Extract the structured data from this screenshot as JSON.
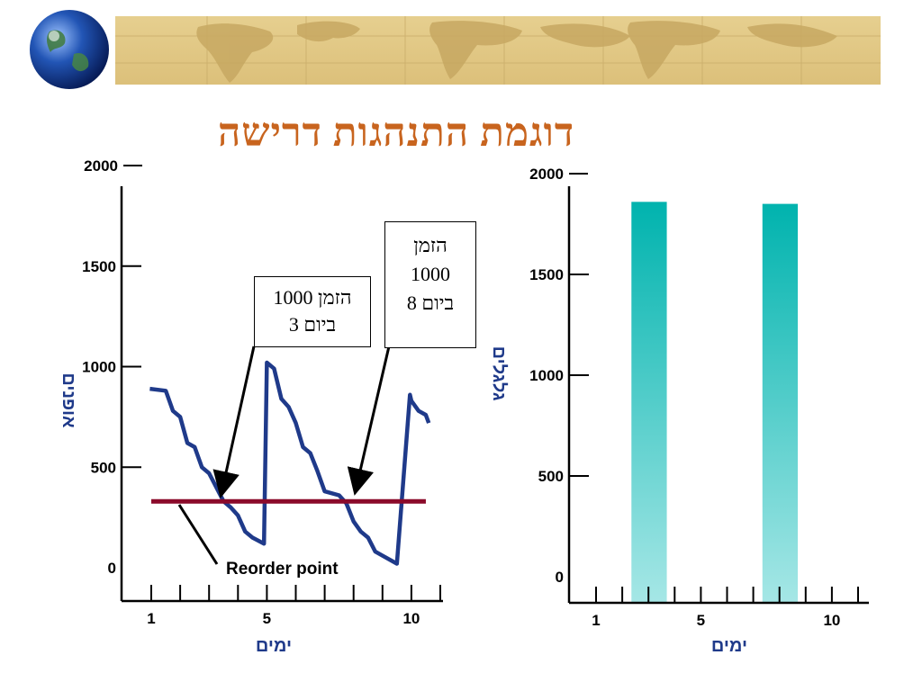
{
  "slide": {
    "title": "דוגמת התנהגות דרישה"
  },
  "colors": {
    "title": "#c8641e",
    "inventory_line": "#1f3a8a",
    "reorder_line": "#8b0a2a",
    "bar_top": "#00b3ae",
    "bar_bottom": "#a6e7e6",
    "axis_title": "#1f3a8a"
  },
  "banner": {
    "icon": "globe-icon",
    "background": "world-map-parchment"
  },
  "callouts": {
    "day3": {
      "line1": "הזמן 1000",
      "line2": "ביום 3"
    },
    "day8": {
      "line1": "הזמן",
      "line2": "1000",
      "line3": "ביום 8"
    },
    "reorder": "Reorder point"
  },
  "chart_data": [
    {
      "type": "line",
      "ylabel": "אופנים",
      "xlabel": "ימים",
      "x_tick_labels": [
        "1",
        "5",
        "10"
      ],
      "y_tick_labels": [
        "0",
        "500",
        "1000",
        "1500",
        "2000"
      ],
      "xlim": [
        1,
        11
      ],
      "ylim": [
        0,
        2000
      ],
      "series": [
        {
          "x": [
            0.95,
            1.5,
            1.75,
            2.0,
            2.25,
            2.5,
            2.75,
            3.0,
            3.5,
            3.75,
            4.0,
            4.25,
            4.5,
            4.9,
            5.0,
            5.25,
            5.5,
            5.75,
            6.0,
            6.25,
            6.5,
            6.75,
            7.0,
            7.5,
            7.75,
            8.0,
            8.25,
            8.5,
            8.75,
            9.0,
            9.5,
            9.95,
            10.0,
            10.25,
            10.5,
            10.6
          ],
          "y": [
            890,
            880,
            780,
            750,
            620,
            600,
            500,
            470,
            330,
            300,
            260,
            180,
            150,
            120,
            1020,
            990,
            840,
            800,
            720,
            600,
            570,
            480,
            380,
            360,
            320,
            230,
            180,
            150,
            80,
            60,
            20,
            860,
            830,
            780,
            760,
            720
          ]
        },
        {
          "x": [
            1.0,
            10.5
          ],
          "y": [
            330,
            330
          ]
        }
      ]
    },
    {
      "type": "bar",
      "ylabel": "גלגלים",
      "xlabel": "ימים",
      "x_tick_labels": [
        "1",
        "5",
        "10"
      ],
      "y_tick_labels": [
        "0",
        "500",
        "1000",
        "1500",
        "2000"
      ],
      "xlim": [
        1,
        11
      ],
      "ylim": [
        0,
        2000
      ],
      "bars": [
        {
          "start": 2.35,
          "end": 3.7,
          "value": 1860
        },
        {
          "start": 7.35,
          "end": 8.7,
          "value": 1850
        }
      ]
    }
  ]
}
